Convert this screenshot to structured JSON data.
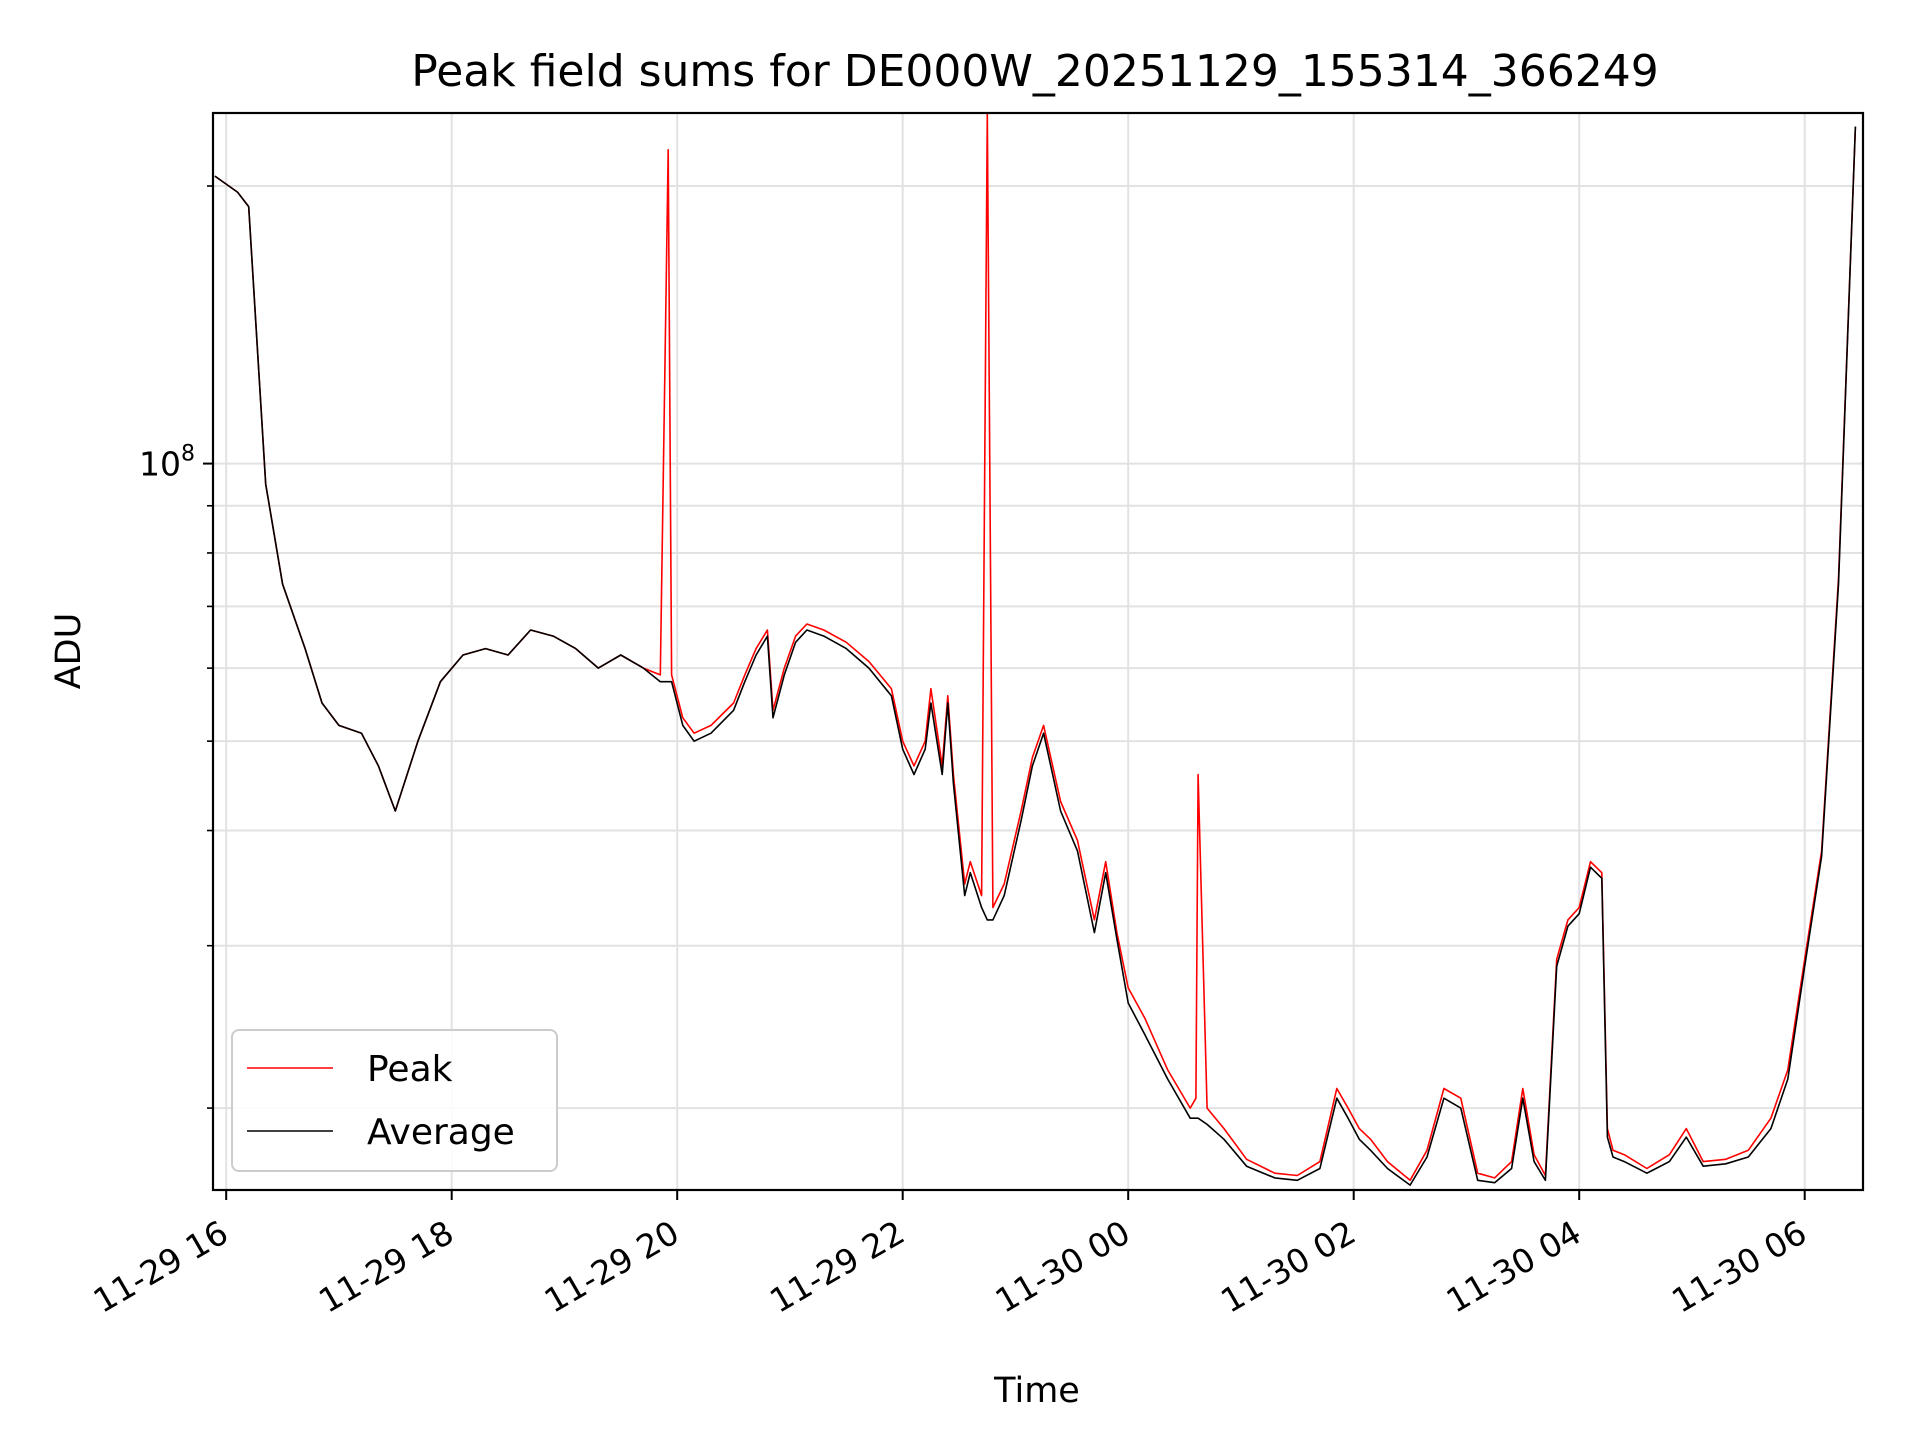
{
  "chart_data": {
    "type": "line",
    "title": "Peak field sums for DE000W_20251129_155314_366249",
    "xlabel": "Time",
    "ylabel": "ADU",
    "yscale": "log",
    "ylim": [
      16300000,
      240000000
    ],
    "xlim": [
      "11-29 15:53",
      "11-30 06:31"
    ],
    "x_ticks": [
      {
        "label": "11-29 16",
        "hour": 16
      },
      {
        "label": "11-29 18",
        "hour": 18
      },
      {
        "label": "11-29 20",
        "hour": 20
      },
      {
        "label": "11-29 22",
        "hour": 22
      },
      {
        "label": "11-30 00",
        "hour": 24
      },
      {
        "label": "11-30 02",
        "hour": 26
      },
      {
        "label": "11-30 04",
        "hour": 28
      },
      {
        "label": "11-30 06",
        "hour": 30
      }
    ],
    "y_major_ticks": [
      {
        "value": 100000000,
        "base": "10",
        "exp": "8"
      }
    ],
    "y_minor_ticks": [
      20000000,
      30000000,
      40000000,
      50000000,
      60000000,
      70000000,
      80000000,
      90000000,
      200000000
    ],
    "grid": true,
    "legend_position": "lower-left",
    "series": [
      {
        "name": "Peak",
        "color": "#ff0000",
        "x_hours": [
          15.9,
          16.1,
          16.2,
          16.35,
          16.5,
          16.7,
          16.85,
          17.0,
          17.2,
          17.35,
          17.5,
          17.7,
          17.9,
          18.1,
          18.3,
          18.5,
          18.7,
          18.9,
          19.1,
          19.3,
          19.5,
          19.7,
          19.85,
          19.92,
          19.95,
          20.05,
          20.15,
          20.3,
          20.5,
          20.6,
          20.7,
          20.8,
          20.85,
          20.95,
          21.05,
          21.15,
          21.3,
          21.5,
          21.7,
          21.9,
          22.0,
          22.1,
          22.2,
          22.25,
          22.35,
          22.4,
          22.45,
          22.55,
          22.6,
          22.7,
          22.75,
          22.8,
          22.9,
          23.05,
          23.15,
          23.25,
          23.4,
          23.55,
          23.7,
          23.8,
          23.9,
          24.0,
          24.15,
          24.35,
          24.55,
          24.6,
          24.62,
          24.7,
          24.85,
          25.05,
          25.3,
          25.5,
          25.7,
          25.85,
          25.95,
          26.05,
          26.15,
          26.3,
          26.5,
          26.65,
          26.8,
          26.95,
          27.1,
          27.25,
          27.4,
          27.5,
          27.6,
          27.7,
          27.8,
          27.9,
          28.0,
          28.1,
          28.2,
          28.25,
          28.3,
          28.4,
          28.6,
          28.8,
          28.95,
          29.1,
          29.3,
          29.5,
          29.7,
          29.85,
          30.0,
          30.15,
          30.3,
          30.45
        ],
        "values": [
          205000000,
          197000000,
          190000000,
          95000000,
          74000000,
          63000000,
          55000000,
          52000000,
          51000000,
          47000000,
          42000000,
          50000000,
          58000000,
          62000000,
          63000000,
          62000000,
          66000000,
          65000000,
          63000000,
          60000000,
          62000000,
          60000000,
          59000000,
          219000000,
          59000000,
          53000000,
          51000000,
          52000000,
          55000000,
          59000000,
          63000000,
          66000000,
          54000000,
          60000000,
          65000000,
          67000000,
          66000000,
          64000000,
          61000000,
          57000000,
          50000000,
          47000000,
          50000000,
          57000000,
          47000000,
          56000000,
          46000000,
          35000000,
          37000000,
          34000000,
          240000000,
          33000000,
          35000000,
          42000000,
          48000000,
          52000000,
          43000000,
          39000000,
          32000000,
          37000000,
          31000000,
          27000000,
          25000000,
          22000000,
          20000000,
          20500000,
          46000000,
          20000000,
          19000000,
          17600000,
          17000000,
          16900000,
          17500000,
          21000000,
          20000000,
          19000000,
          18500000,
          17500000,
          16700000,
          18000000,
          21000000,
          20500000,
          17000000,
          16800000,
          17500000,
          21000000,
          17800000,
          16900000,
          29000000,
          32000000,
          33000000,
          37000000,
          36000000,
          19000000,
          18000000,
          17800000,
          17200000,
          17800000,
          19000000,
          17500000,
          17600000,
          18000000,
          19500000,
          22000000,
          29000000,
          38000000,
          75000000,
          232000000
        ]
      },
      {
        "name": "Average",
        "color": "#000000",
        "x_hours": [
          15.9,
          16.1,
          16.2,
          16.35,
          16.5,
          16.7,
          16.85,
          17.0,
          17.2,
          17.35,
          17.5,
          17.7,
          17.9,
          18.1,
          18.3,
          18.5,
          18.7,
          18.9,
          19.1,
          19.3,
          19.5,
          19.7,
          19.85,
          19.92,
          19.95,
          20.05,
          20.15,
          20.3,
          20.5,
          20.6,
          20.7,
          20.8,
          20.85,
          20.95,
          21.05,
          21.15,
          21.3,
          21.5,
          21.7,
          21.9,
          22.0,
          22.1,
          22.2,
          22.25,
          22.35,
          22.4,
          22.45,
          22.55,
          22.6,
          22.7,
          22.75,
          22.8,
          22.9,
          23.05,
          23.15,
          23.25,
          23.4,
          23.55,
          23.7,
          23.8,
          23.9,
          24.0,
          24.15,
          24.35,
          24.55,
          24.6,
          24.62,
          24.7,
          24.85,
          25.05,
          25.3,
          25.5,
          25.7,
          25.85,
          25.95,
          26.05,
          26.15,
          26.3,
          26.5,
          26.65,
          26.8,
          26.95,
          27.1,
          27.25,
          27.4,
          27.5,
          27.6,
          27.7,
          27.8,
          27.9,
          28.0,
          28.1,
          28.2,
          28.25,
          28.3,
          28.4,
          28.6,
          28.8,
          28.95,
          29.1,
          29.3,
          29.5,
          29.7,
          29.85,
          30.0,
          30.15,
          30.3,
          30.45
        ],
        "values": [
          205000000,
          197000000,
          190000000,
          95000000,
          74000000,
          63000000,
          55000000,
          52000000,
          51000000,
          47000000,
          42000000,
          50000000,
          58000000,
          62000000,
          63000000,
          62000000,
          66000000,
          65000000,
          63000000,
          60000000,
          62000000,
          60000000,
          58000000,
          58000000,
          58000000,
          52000000,
          50000000,
          51000000,
          54000000,
          58000000,
          62000000,
          65000000,
          53000000,
          59000000,
          64000000,
          66000000,
          65000000,
          63000000,
          60000000,
          56000000,
          49000000,
          46000000,
          49000000,
          55000000,
          46000000,
          55000000,
          45000000,
          34000000,
          36000000,
          33000000,
          32000000,
          32000000,
          34000000,
          41000000,
          47000000,
          51000000,
          42000000,
          38000000,
          31000000,
          36000000,
          30500000,
          26000000,
          24000000,
          21500000,
          19500000,
          19500000,
          19500000,
          19200000,
          18500000,
          17300000,
          16800000,
          16700000,
          17200000,
          20500000,
          19500000,
          18500000,
          18000000,
          17200000,
          16500000,
          17700000,
          20500000,
          20000000,
          16700000,
          16600000,
          17200000,
          20500000,
          17500000,
          16700000,
          28500000,
          31500000,
          32500000,
          36500000,
          35500000,
          18600000,
          17700000,
          17500000,
          17000000,
          17500000,
          18600000,
          17300000,
          17400000,
          17700000,
          19000000,
          21500000,
          28500000,
          37500000,
          74000000,
          232000000
        ]
      }
    ]
  }
}
